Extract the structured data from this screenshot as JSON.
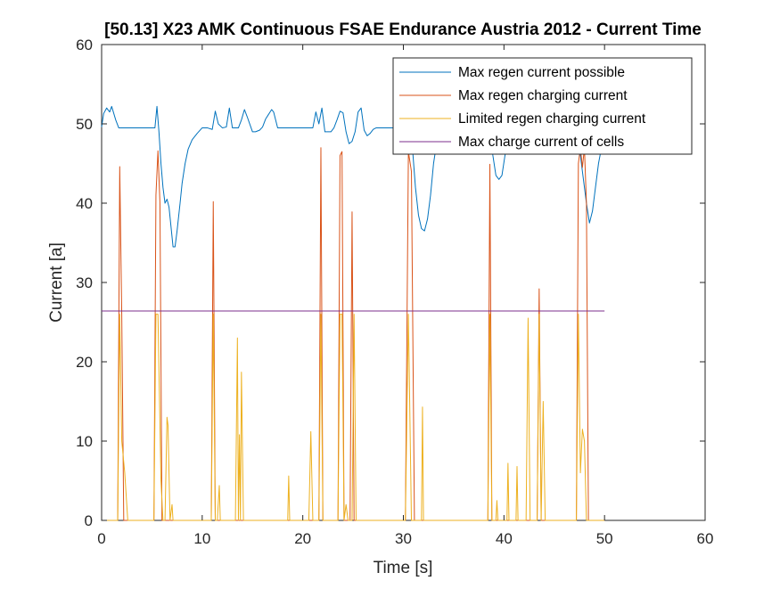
{
  "chart_data": {
    "type": "line",
    "title": "[50.13] X23 AMK Continuous  FSAE Endurance Austria 2012 - Current Time",
    "xlabel": "Time [s]",
    "ylabel": "Current [a]",
    "xlim": [
      0,
      60
    ],
    "ylim": [
      0,
      60
    ],
    "xticks": [
      0,
      10,
      20,
      30,
      40,
      50,
      60
    ],
    "yticks": [
      0,
      10,
      20,
      30,
      40,
      50,
      60
    ],
    "grid": false,
    "legend": "top-right",
    "series": [
      {
        "name": "Max regen current possible",
        "color": "#0072BD",
        "x": [
          0,
          0.2,
          0.5,
          0.8,
          1.0,
          1.4,
          1.7,
          2.0,
          2.5,
          3.0,
          3.5,
          4.0,
          4.5,
          4.8,
          5.0,
          5.3,
          5.5,
          5.7,
          5.9,
          6.1,
          6.3,
          6.5,
          6.7,
          6.9,
          7.1,
          7.3,
          7.5,
          7.8,
          8.0,
          8.3,
          8.6,
          9.0,
          9.5,
          10.0,
          10.5,
          11.0,
          11.3,
          11.6,
          12.0,
          12.4,
          12.7,
          13.0,
          13.3,
          13.6,
          13.9,
          14.2,
          14.5,
          15.0,
          15.3,
          15.7,
          16.0,
          16.3,
          16.6,
          16.9,
          17.1,
          17.5,
          18.0,
          18.5,
          19.0,
          19.5,
          20.0,
          20.5,
          21.0,
          21.3,
          21.6,
          21.9,
          22.2,
          22.5,
          22.8,
          23.1,
          23.4,
          23.7,
          24.0,
          24.3,
          24.6,
          24.9,
          25.2,
          25.5,
          25.8,
          26.1,
          26.4,
          26.7,
          27.0,
          27.3,
          27.7,
          28.0,
          28.5,
          29.0,
          29.5,
          30.0,
          30.3,
          30.6,
          30.9,
          31.2,
          31.5,
          31.8,
          32.1,
          32.4,
          32.7,
          33.0,
          33.3,
          33.6,
          34.0,
          34.5,
          35.0,
          35.5,
          36.0,
          36.5,
          37.0,
          37.5,
          38.0,
          38.3,
          38.6,
          38.9,
          39.2,
          39.5,
          39.8,
          40.1,
          40.4,
          40.7,
          41.0,
          41.3,
          41.6,
          42.0,
          42.5,
          43.0,
          43.5,
          44.0,
          44.5,
          45.0,
          45.5,
          46.0,
          46.5,
          47.0,
          47.3,
          47.6,
          47.9,
          48.2,
          48.5,
          48.8,
          49.1,
          49.4,
          49.7,
          50.0
        ],
        "y": [
          49.6,
          51.3,
          52.0,
          51.5,
          52.2,
          50.5,
          49.5,
          49.5,
          49.5,
          49.5,
          49.5,
          49.5,
          49.5,
          49.5,
          49.5,
          49.5,
          52.2,
          49.0,
          45.0,
          42.0,
          40.0,
          40.5,
          39.5,
          37.0,
          34.5,
          34.5,
          36.5,
          40.0,
          42.5,
          45.0,
          46.8,
          48.0,
          48.8,
          49.5,
          49.5,
          49.3,
          51.6,
          50.0,
          49.5,
          49.6,
          52.0,
          49.5,
          49.5,
          49.5,
          50.5,
          51.8,
          50.8,
          49.0,
          49.0,
          49.2,
          49.6,
          50.6,
          51.2,
          51.8,
          51.5,
          49.5,
          49.5,
          49.5,
          49.5,
          49.5,
          49.5,
          49.5,
          49.5,
          51.5,
          50.0,
          52.0,
          49.0,
          49.0,
          49.0,
          49.5,
          50.5,
          51.6,
          51.4,
          49.0,
          47.5,
          47.8,
          49.0,
          51.5,
          52.0,
          49.2,
          48.5,
          48.8,
          49.3,
          49.5,
          49.5,
          49.5,
          49.5,
          49.5,
          49.5,
          49.5,
          49.5,
          49.5,
          47.0,
          42.0,
          38.5,
          36.8,
          36.5,
          38.0,
          41.0,
          45.0,
          47.5,
          48.5,
          49.2,
          49.5,
          49.5,
          49.5,
          49.5,
          49.5,
          49.5,
          49.5,
          49.5,
          49.5,
          49.0,
          46.0,
          43.5,
          43.0,
          43.5,
          46.0,
          48.0,
          49.2,
          49.5,
          49.5,
          49.5,
          49.5,
          49.5,
          49.5,
          49.5,
          49.5,
          49.5,
          49.5,
          49.5,
          49.5,
          49.5,
          49.5,
          48.0,
          46.0,
          43.0,
          40.0,
          37.5,
          39.0,
          42.0,
          45.0,
          47.0,
          48.0
        ]
      },
      {
        "name": "Max regen charging current",
        "color": "#D95319",
        "x": [
          0,
          1.6,
          1.8,
          2.0,
          2.2,
          5.2,
          5.4,
          5.6,
          5.8,
          6.0,
          10.9,
          11.1,
          11.3,
          21.6,
          21.8,
          22.0,
          23.5,
          23.7,
          23.9,
          24.1,
          24.7,
          24.9,
          25.1,
          30.2,
          30.5,
          30.8,
          31.1,
          38.4,
          38.6,
          38.8,
          43.3,
          43.5,
          43.7,
          47.2,
          47.4,
          47.6,
          47.8,
          48.0,
          48.2,
          48.4,
          50.0
        ],
        "y": [
          0,
          0,
          44.6,
          26.0,
          0,
          0,
          41.0,
          46.6,
          40.0,
          0,
          0,
          40.2,
          0,
          0,
          47.0,
          0,
          0,
          46.0,
          46.5,
          0,
          0,
          38.9,
          0,
          0,
          46.5,
          44.0,
          0,
          0,
          44.9,
          0,
          0,
          29.2,
          0,
          0,
          45.0,
          47.0,
          44.5,
          47.0,
          40.0,
          0,
          0
        ]
      },
      {
        "name": "Limited regen charging current",
        "color": "#EDB120",
        "x": [
          0,
          1.6,
          1.8,
          2.0,
          2.3,
          2.6,
          2.8,
          5.2,
          5.4,
          5.6,
          5.9,
          6.1,
          6.3,
          6.5,
          6.6,
          6.8,
          7.0,
          7.1,
          7.2,
          7.4,
          10.9,
          11.1,
          11.3,
          11.5,
          11.7,
          11.8,
          11.9,
          13.3,
          13.5,
          13.6,
          13.7,
          13.8,
          13.9,
          14.1,
          14.2,
          18.5,
          18.6,
          18.7,
          20.6,
          20.8,
          21.0,
          21.6,
          21.8,
          22.0,
          23.5,
          23.7,
          23.9,
          24.1,
          24.3,
          24.5,
          24.9,
          25.1,
          25.3,
          30.2,
          30.5,
          30.8,
          31.1,
          31.8,
          31.9,
          32.0,
          38.4,
          38.6,
          38.8,
          39.2,
          39.3,
          39.4,
          40.3,
          40.4,
          40.5,
          41.2,
          41.3,
          41.4,
          42.2,
          42.4,
          42.6,
          43.3,
          43.5,
          43.7,
          43.9,
          44.1,
          44.2,
          47.2,
          47.4,
          47.6,
          47.8,
          48.0,
          48.2,
          48.4,
          50.0
        ],
        "y": [
          0,
          0,
          26.0,
          10.0,
          6.0,
          0,
          0,
          0,
          26.0,
          26.0,
          5.0,
          0,
          0,
          13.0,
          12.0,
          0,
          2.0,
          0,
          0,
          0,
          0,
          26.0,
          0,
          0,
          4.4,
          0,
          0,
          0,
          23.0,
          0,
          10.8,
          0,
          18.7,
          0,
          0,
          0,
          5.6,
          0,
          0,
          11.2,
          0,
          0,
          26.0,
          0,
          0,
          26.0,
          26.0,
          0,
          2.0,
          0,
          0,
          26.0,
          0,
          0,
          26.0,
          0,
          0,
          0,
          14.3,
          0,
          0,
          26.0,
          0,
          0,
          2.5,
          0,
          0,
          7.2,
          0,
          0,
          6.8,
          0,
          0,
          25.5,
          0,
          0,
          26.0,
          0,
          15.0,
          0,
          0,
          0,
          26.0,
          6.0,
          11.5,
          10.0,
          0,
          0,
          0
        ]
      },
      {
        "name": "Max charge current of cells",
        "color": "#7E2F8E",
        "x": [
          0,
          50
        ],
        "y": [
          26.4,
          26.4
        ]
      }
    ]
  }
}
